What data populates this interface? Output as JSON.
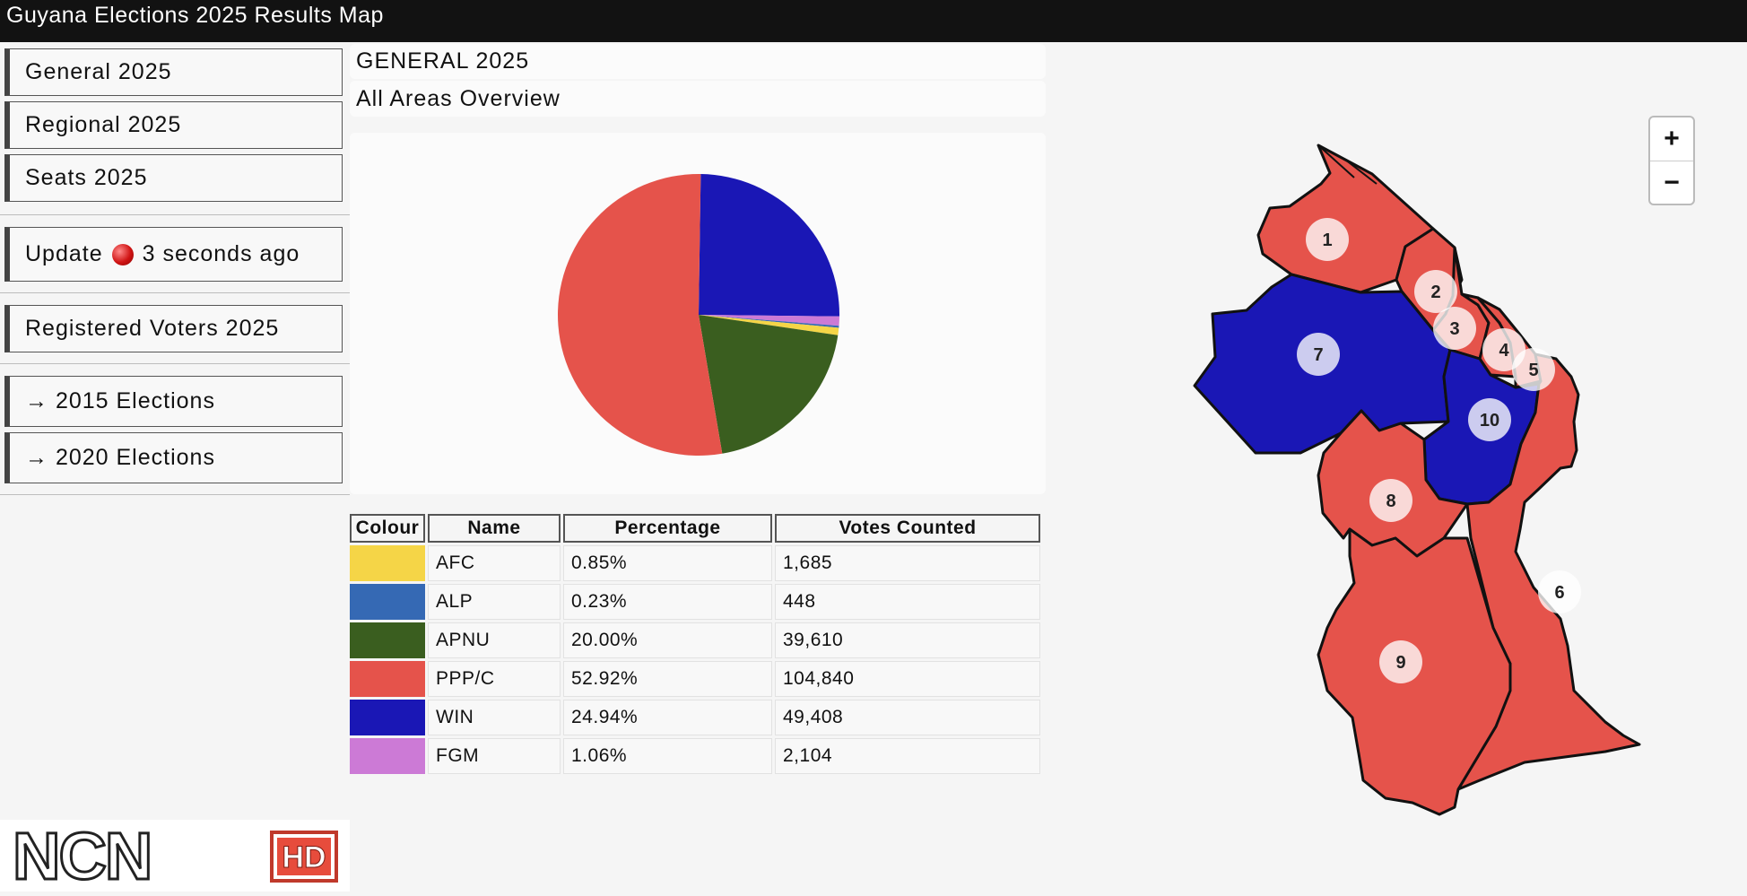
{
  "window": {
    "title": "Guyana Elections 2025 Results Map"
  },
  "sidebar": {
    "nav": [
      {
        "label": "General 2025"
      },
      {
        "label": "Regional 2025"
      },
      {
        "label": "Seats 2025"
      }
    ],
    "update": {
      "label": "Update",
      "status_text": "3 seconds ago"
    },
    "registered_voters": {
      "label": "Registered Voters 2025"
    },
    "history": [
      {
        "label": "→ 2015 Elections"
      },
      {
        "label": "→ 2020 Elections"
      }
    ],
    "logo": {
      "text": "NCN",
      "badge": "HD"
    }
  },
  "main": {
    "heading": "GENERAL 2025",
    "subheading": "All Areas Overview",
    "table": {
      "headers": [
        "Colour",
        "Name",
        "Percentage",
        "Votes Counted"
      ],
      "rows": [
        {
          "color": "#f5d547",
          "name": "AFC",
          "percentage": "0.85%",
          "votes": "1,685"
        },
        {
          "color": "#3569b4",
          "name": "ALP",
          "percentage": "0.23%",
          "votes": "448"
        },
        {
          "color": "#3a5e1f",
          "name": "APNU",
          "percentage": "20.00%",
          "votes": "39,610"
        },
        {
          "color": "#e5534b",
          "name": "PPP/C",
          "percentage": "52.92%",
          "votes": "104,840"
        },
        {
          "color": "#1a17b5",
          "name": "WIN",
          "percentage": "24.94%",
          "votes": "49,408"
        },
        {
          "color": "#cc7ad6",
          "name": "FGM",
          "percentage": "1.06%",
          "votes": "2,104"
        }
      ]
    }
  },
  "chart_data": {
    "type": "pie",
    "slices": [
      {
        "label": "WIN",
        "value": 24.94,
        "color": "#1a17b5"
      },
      {
        "label": "FGM",
        "value": 1.06,
        "color": "#cc7ad6"
      },
      {
        "label": "ALP",
        "value": 0.23,
        "color": "#3569b4"
      },
      {
        "label": "AFC",
        "value": 0.85,
        "color": "#f5d547"
      },
      {
        "label": "APNU",
        "value": 20.0,
        "color": "#3a5e1f"
      },
      {
        "label": "PPP/C",
        "value": 52.92,
        "color": "#e5534b"
      }
    ]
  },
  "map": {
    "zoom_in": "+",
    "zoom_out": "−",
    "regions": [
      {
        "id": "1",
        "winner": "PPP/C"
      },
      {
        "id": "2",
        "winner": "PPP/C"
      },
      {
        "id": "3",
        "winner": "PPP/C"
      },
      {
        "id": "4",
        "winner": "PPP/C"
      },
      {
        "id": "5",
        "winner": "PPP/C"
      },
      {
        "id": "6",
        "winner": "PPP/C"
      },
      {
        "id": "7",
        "winner": "WIN"
      },
      {
        "id": "8",
        "winner": "PPP/C"
      },
      {
        "id": "9",
        "winner": "PPP/C"
      },
      {
        "id": "10",
        "winner": "WIN"
      }
    ],
    "colors": {
      "ppp": "#e5534b",
      "win": "#1a17b5"
    }
  }
}
